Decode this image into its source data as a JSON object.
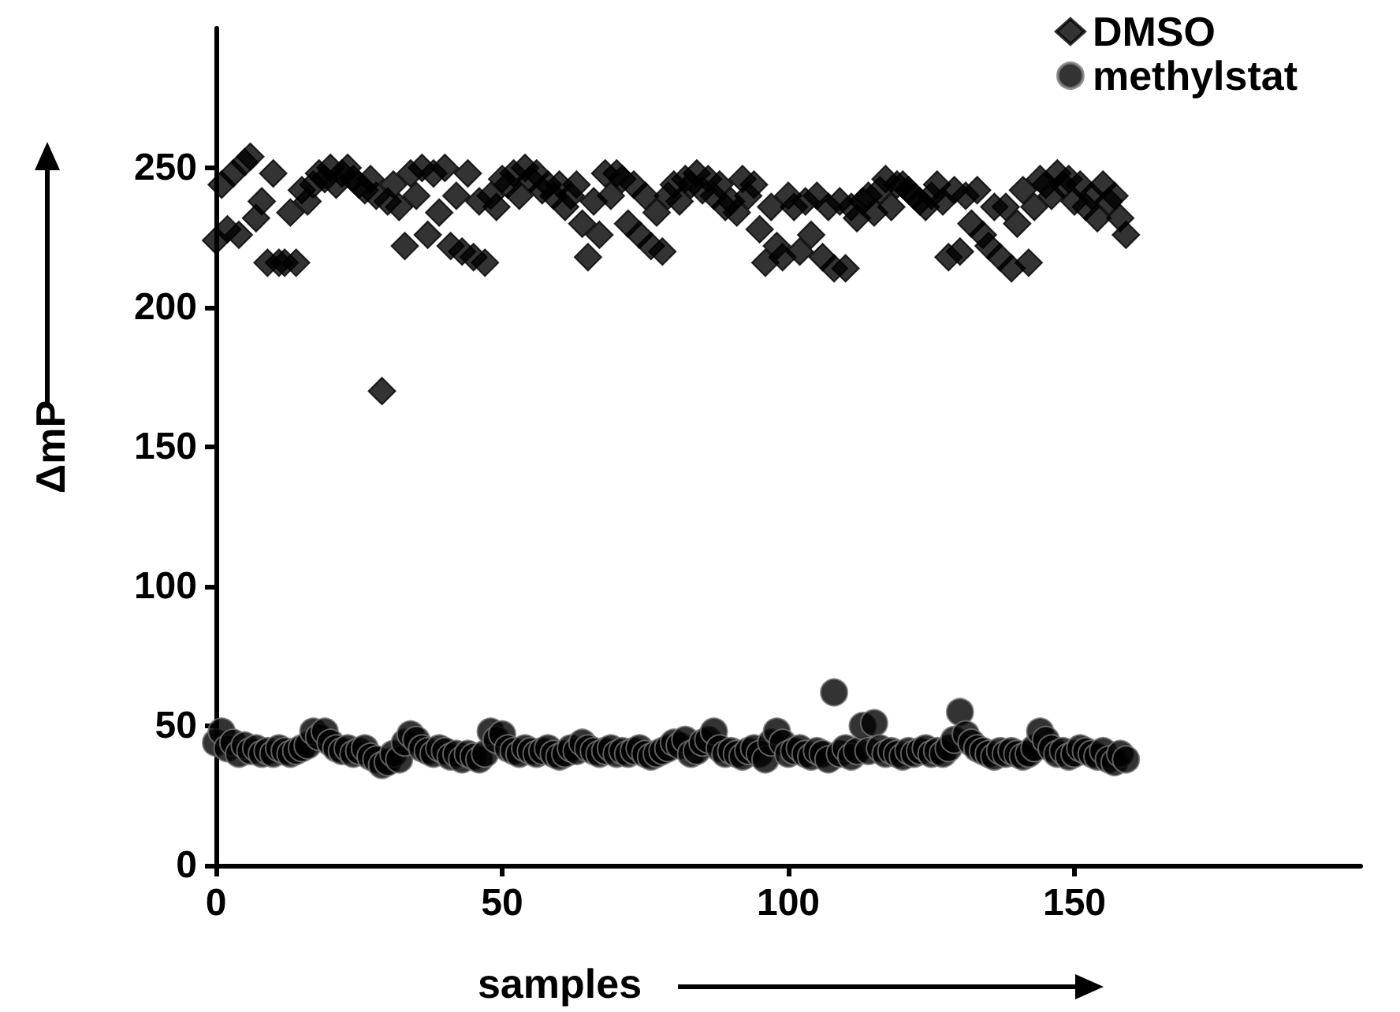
{
  "chart_data": {
    "type": "scatter",
    "xlabel": "samples",
    "ylabel": "ΔmP",
    "x": [
      0,
      1,
      2,
      3,
      4,
      5,
      6,
      7,
      8,
      9,
      10,
      11,
      12,
      13,
      14,
      15,
      16,
      17,
      18,
      19,
      20,
      21,
      22,
      23,
      24,
      25,
      26,
      27,
      28,
      29,
      30,
      31,
      32,
      33,
      34,
      35,
      36,
      37,
      38,
      39,
      40,
      41,
      42,
      43,
      44,
      45,
      46,
      47,
      48,
      49,
      50,
      51,
      52,
      53,
      54,
      55,
      56,
      57,
      58,
      59,
      60,
      61,
      62,
      63,
      64,
      65,
      66,
      67,
      68,
      69,
      70,
      71,
      72,
      73,
      74,
      75,
      76,
      77,
      78,
      79,
      80,
      81,
      82,
      83,
      84,
      85,
      86,
      87,
      88,
      89,
      90,
      91,
      92,
      93,
      94,
      95,
      96,
      97,
      98,
      99,
      100,
      101,
      102,
      103,
      104,
      105,
      106,
      107,
      108,
      109,
      110,
      111,
      112,
      113,
      114,
      115,
      116,
      117,
      118,
      119,
      120,
      121,
      122,
      123,
      124,
      125,
      126,
      127,
      128,
      129,
      130,
      131,
      132,
      133,
      134,
      135,
      136,
      137,
      138,
      139,
      140,
      141,
      142,
      143,
      144,
      145,
      146,
      147,
      148,
      149,
      150,
      151,
      152,
      153,
      154,
      155,
      156,
      157,
      158,
      159
    ],
    "series": [
      {
        "name": "DMSO",
        "color": "#000000",
        "marker": "diamond",
        "values": [
          224,
          244,
          228,
          248,
          226,
          252,
          254,
          232,
          238,
          216,
          248,
          216,
          216,
          234,
          216,
          242,
          238,
          244,
          248,
          246,
          250,
          244,
          248,
          250,
          246,
          244,
          242,
          246,
          240,
          170,
          238,
          244,
          236,
          222,
          248,
          240,
          250,
          226,
          248,
          234,
          250,
          222,
          240,
          220,
          248,
          218,
          238,
          216,
          240,
          236,
          246,
          244,
          248,
          240,
          250,
          246,
          248,
          242,
          244,
          240,
          244,
          236,
          240,
          244,
          230,
          218,
          238,
          226,
          248,
          240,
          248,
          246,
          230,
          244,
          226,
          240,
          222,
          234,
          220,
          240,
          244,
          238,
          246,
          244,
          248,
          242,
          246,
          240,
          244,
          236,
          238,
          234,
          246,
          240,
          244,
          228,
          216,
          236,
          222,
          218,
          240,
          236,
          220,
          238,
          226,
          240,
          218,
          236,
          214,
          238,
          214,
          236,
          232,
          238,
          240,
          234,
          242,
          246,
          236,
          244,
          244,
          242,
          240,
          238,
          236,
          240,
          244,
          238,
          218,
          242,
          220,
          240,
          230,
          242,
          226,
          222,
          236,
          218,
          236,
          214,
          230,
          242,
          216,
          236,
          246,
          244,
          240,
          248,
          244,
          246,
          238,
          244,
          236,
          240,
          232,
          244,
          238,
          240,
          232,
          226
        ]
      },
      {
        "name": "methylstat",
        "color": "#000000",
        "marker": "circle",
        "values": [
          44,
          48,
          42,
          44,
          40,
          43,
          41,
          42,
          40,
          41,
          40,
          42,
          41,
          40,
          41,
          42,
          43,
          48,
          46,
          48,
          44,
          42,
          41,
          42,
          40,
          41,
          42,
          39,
          38,
          36,
          37,
          40,
          38,
          44,
          47,
          45,
          42,
          41,
          40,
          42,
          41,
          39,
          40,
          38,
          40,
          39,
          38,
          40,
          48,
          45,
          47,
          42,
          41,
          40,
          42,
          41,
          40,
          41,
          42,
          40,
          39,
          40,
          42,
          41,
          44,
          42,
          41,
          40,
          41,
          42,
          40,
          41,
          40,
          41,
          42,
          40,
          39,
          40,
          41,
          42,
          44,
          43,
          45,
          40,
          41,
          44,
          45,
          48,
          42,
          40,
          41,
          40,
          39,
          41,
          42,
          40,
          38,
          44,
          48,
          44,
          40,
          41,
          42,
          40,
          39,
          41,
          40,
          38,
          62,
          40,
          42,
          39,
          41,
          50,
          41,
          51,
          42,
          40,
          41,
          40,
          39,
          41,
          40,
          41,
          42,
          40,
          41,
          40,
          42,
          45,
          55,
          47,
          44,
          42,
          41,
          40,
          39,
          41,
          40,
          41,
          40,
          39,
          40,
          42,
          48,
          45,
          42,
          40,
          41,
          39,
          40,
          42,
          41,
          40,
          39,
          41,
          38,
          37,
          40,
          38
        ]
      }
    ],
    "xlim": [
      0,
      200
    ],
    "xticks": [
      0,
      50,
      100,
      150
    ],
    "ylim": [
      0,
      300
    ],
    "yticks": [
      0,
      50,
      100,
      150,
      200,
      250
    ],
    "grid": false,
    "legend": "top right"
  }
}
